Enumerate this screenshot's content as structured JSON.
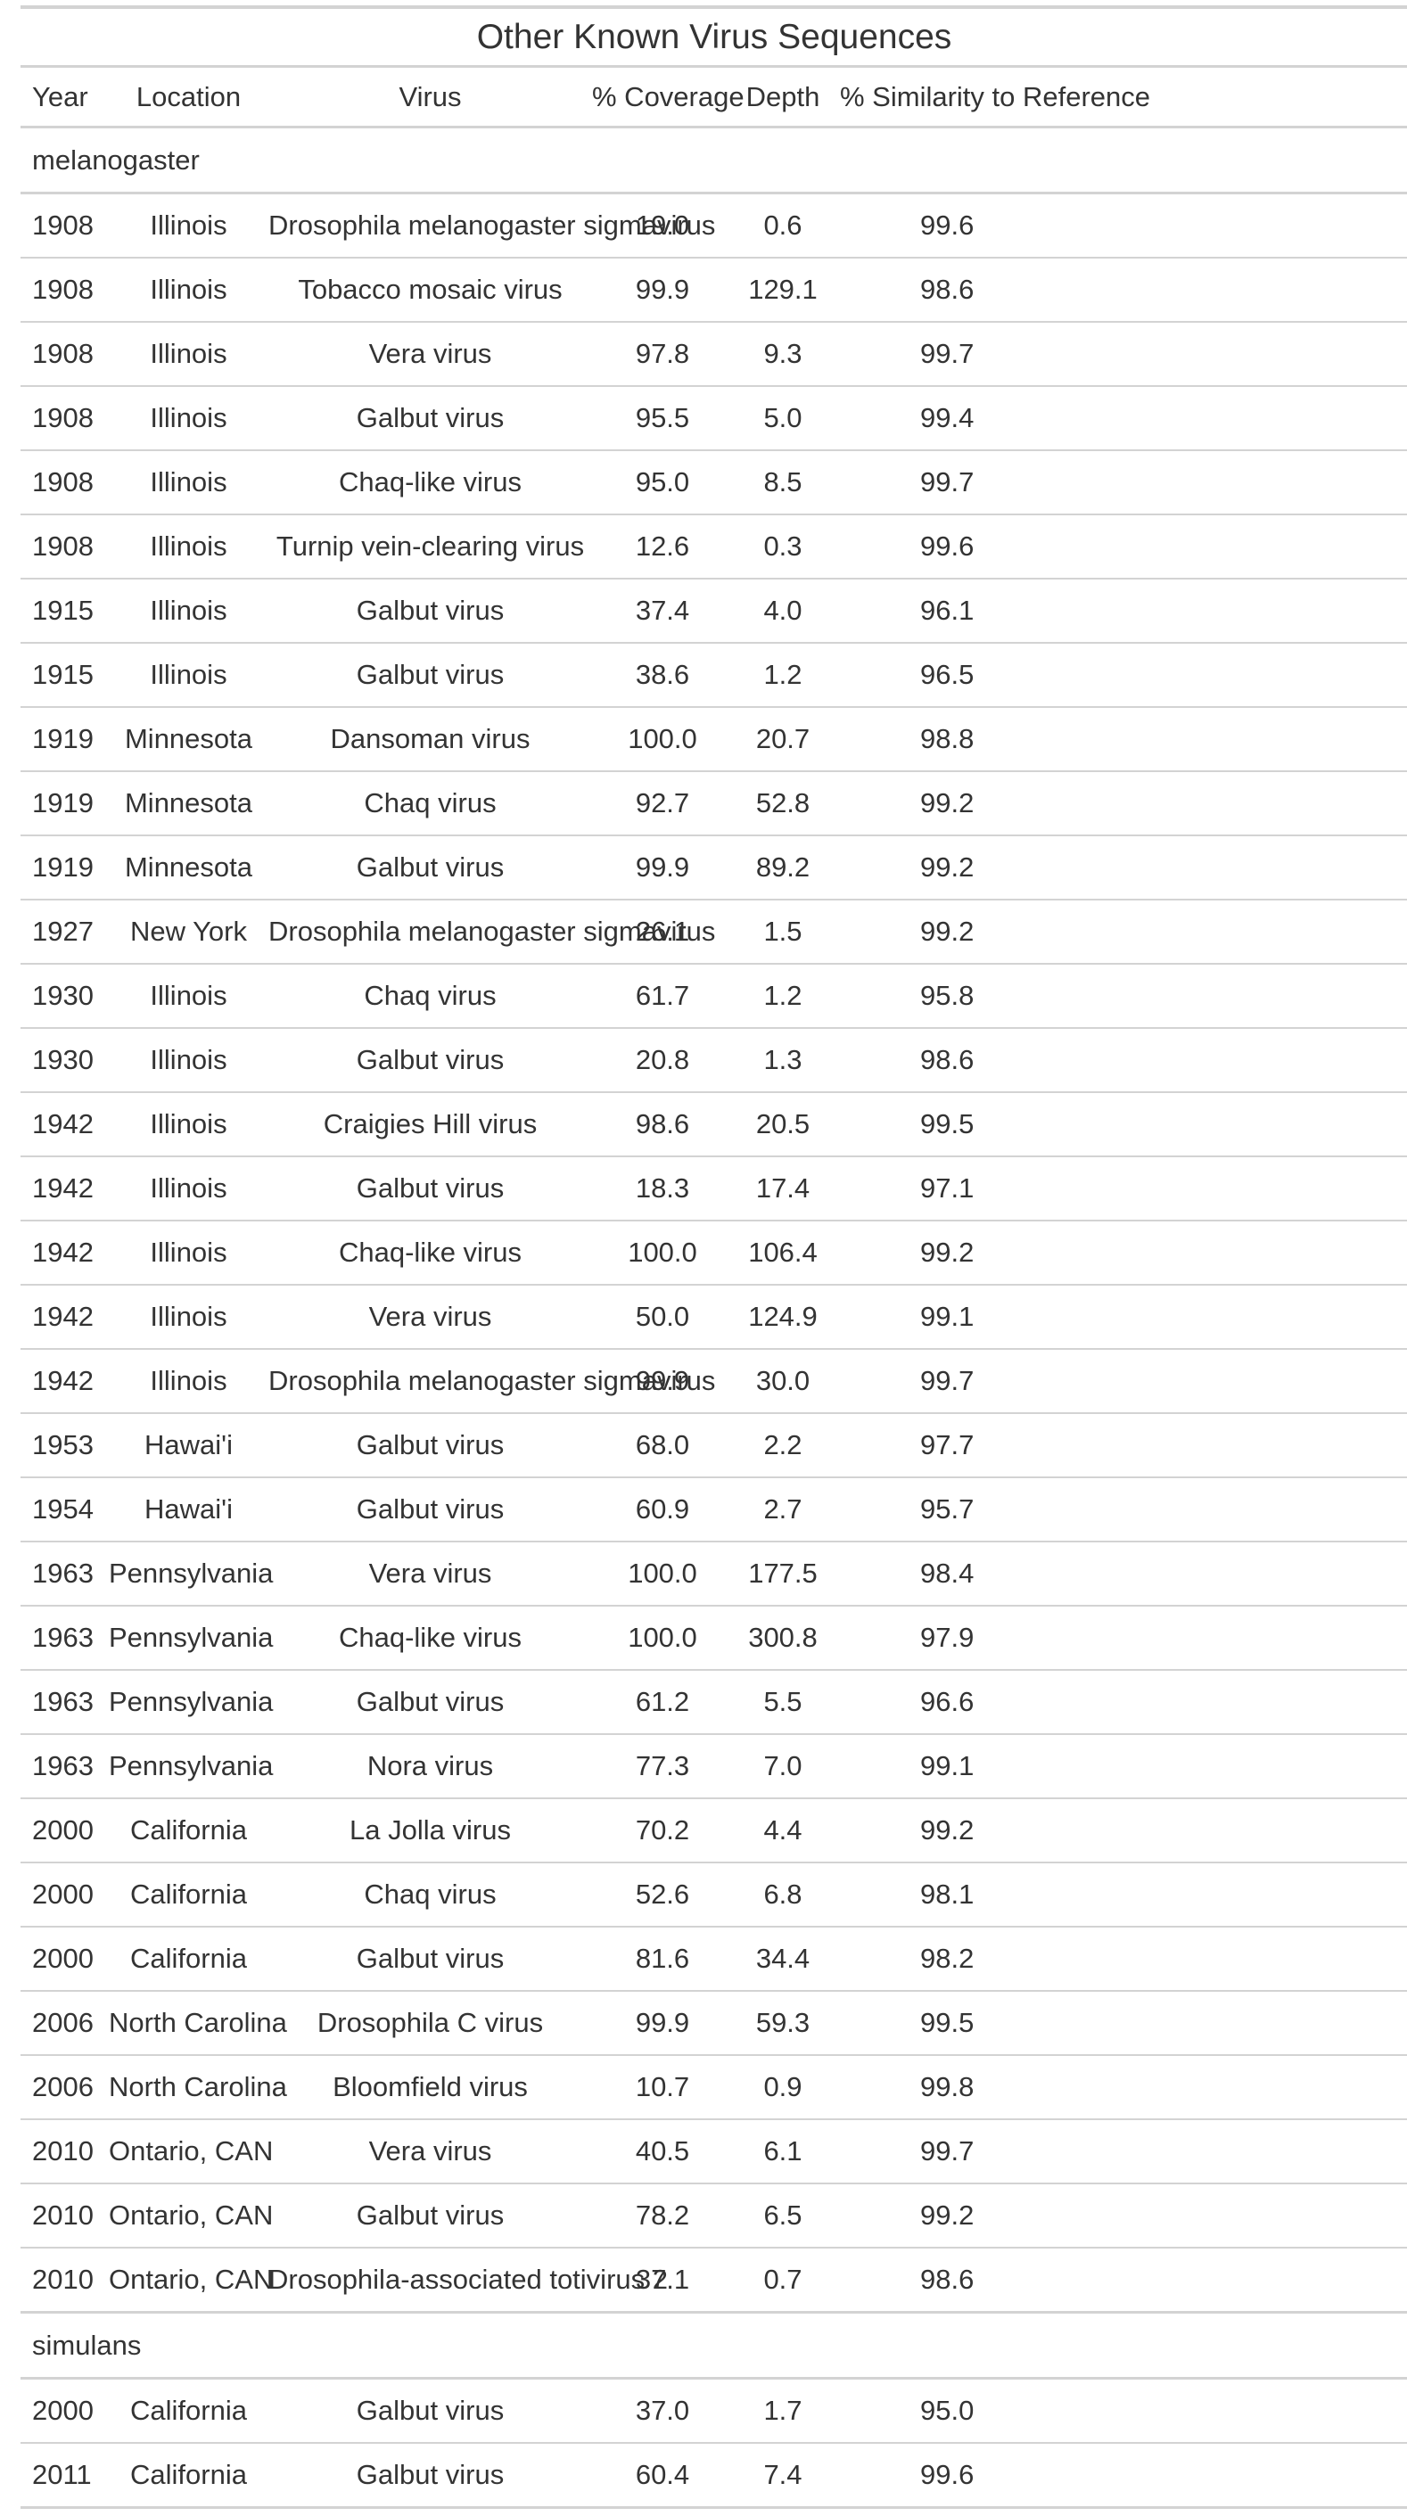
{
  "title": "Other Known Virus Sequences",
  "columns": [
    "Year",
    "Location",
    "Virus",
    "% Coverage",
    "Depth",
    "% Similarity to Reference"
  ],
  "groups": [
    {
      "name": "melanogaster",
      "rows": [
        [
          "1908",
          "Illinois",
          "Drosophila melanogaster sigmavirus",
          "19.0",
          "0.6",
          "99.6"
        ],
        [
          "1908",
          "Illinois",
          "Tobacco mosaic virus",
          "99.9",
          "129.1",
          "98.6"
        ],
        [
          "1908",
          "Illinois",
          "Vera virus",
          "97.8",
          "9.3",
          "99.7"
        ],
        [
          "1908",
          "Illinois",
          "Galbut virus",
          "95.5",
          "5.0",
          "99.4"
        ],
        [
          "1908",
          "Illinois",
          "Chaq-like virus",
          "95.0",
          "8.5",
          "99.7"
        ],
        [
          "1908",
          "Illinois",
          "Turnip vein-clearing virus",
          "12.6",
          "0.3",
          "99.6"
        ],
        [
          "1915",
          "Illinois",
          "Galbut virus",
          "37.4",
          "4.0",
          "96.1"
        ],
        [
          "1915",
          "Illinois",
          "Galbut virus",
          "38.6",
          "1.2",
          "96.5"
        ],
        [
          "1919",
          "Minnesota",
          "Dansoman virus",
          "100.0",
          "20.7",
          "98.8"
        ],
        [
          "1919",
          "Minnesota",
          "Chaq virus",
          "92.7",
          "52.8",
          "99.2"
        ],
        [
          "1919",
          "Minnesota",
          "Galbut virus",
          "99.9",
          "89.2",
          "99.2"
        ],
        [
          "1927",
          "New York",
          "Drosophila melanogaster sigmavirus",
          "26.1",
          "1.5",
          "99.2"
        ],
        [
          "1930",
          "Illinois",
          "Chaq virus",
          "61.7",
          "1.2",
          "95.8"
        ],
        [
          "1930",
          "Illinois",
          "Galbut virus",
          "20.8",
          "1.3",
          "98.6"
        ],
        [
          "1942",
          "Illinois",
          "Craigies Hill virus",
          "98.6",
          "20.5",
          "99.5"
        ],
        [
          "1942",
          "Illinois",
          "Galbut virus",
          "18.3",
          "17.4",
          "97.1"
        ],
        [
          "1942",
          "Illinois",
          "Chaq-like virus",
          "100.0",
          "106.4",
          "99.2"
        ],
        [
          "1942",
          "Illinois",
          "Vera virus",
          "50.0",
          "124.9",
          "99.1"
        ],
        [
          "1942",
          "Illinois",
          "Drosophila melanogaster sigmavirus",
          "99.9",
          "30.0",
          "99.7"
        ],
        [
          "1953",
          "Hawai'i",
          "Galbut virus",
          "68.0",
          "2.2",
          "97.7"
        ],
        [
          "1954",
          "Hawai'i",
          "Galbut virus",
          "60.9",
          "2.7",
          "95.7"
        ],
        [
          "1963",
          "Pennsylvania",
          "Vera virus",
          "100.0",
          "177.5",
          "98.4"
        ],
        [
          "1963",
          "Pennsylvania",
          "Chaq-like virus",
          "100.0",
          "300.8",
          "97.9"
        ],
        [
          "1963",
          "Pennsylvania",
          "Galbut virus",
          "61.2",
          "5.5",
          "96.6"
        ],
        [
          "1963",
          "Pennsylvania",
          "Nora virus",
          "77.3",
          "7.0",
          "99.1"
        ],
        [
          "2000",
          "California",
          "La Jolla virus",
          "70.2",
          "4.4",
          "99.2"
        ],
        [
          "2000",
          "California",
          "Chaq virus",
          "52.6",
          "6.8",
          "98.1"
        ],
        [
          "2000",
          "California",
          "Galbut virus",
          "81.6",
          "34.4",
          "98.2"
        ],
        [
          "2006",
          "North Carolina",
          "Drosophila C virus",
          "99.9",
          "59.3",
          "99.5"
        ],
        [
          "2006",
          "North Carolina",
          "Bloomfield virus",
          "10.7",
          "0.9",
          "99.8"
        ],
        [
          "2010",
          "Ontario, CAN",
          "Vera virus",
          "40.5",
          "6.1",
          "99.7"
        ],
        [
          "2010",
          "Ontario, CAN",
          "Galbut virus",
          "78.2",
          "6.5",
          "99.2"
        ],
        [
          "2010",
          "Ontario, CAN",
          "Drosophila-associated totivirus 2",
          "37.1",
          "0.7",
          "98.6"
        ]
      ]
    },
    {
      "name": "simulans",
      "rows": [
        [
          "2000",
          "California",
          "Galbut virus",
          "37.0",
          "1.7",
          "95.0"
        ],
        [
          "2011",
          "California",
          "Galbut virus",
          "60.4",
          "7.4",
          "99.6"
        ]
      ]
    }
  ]
}
